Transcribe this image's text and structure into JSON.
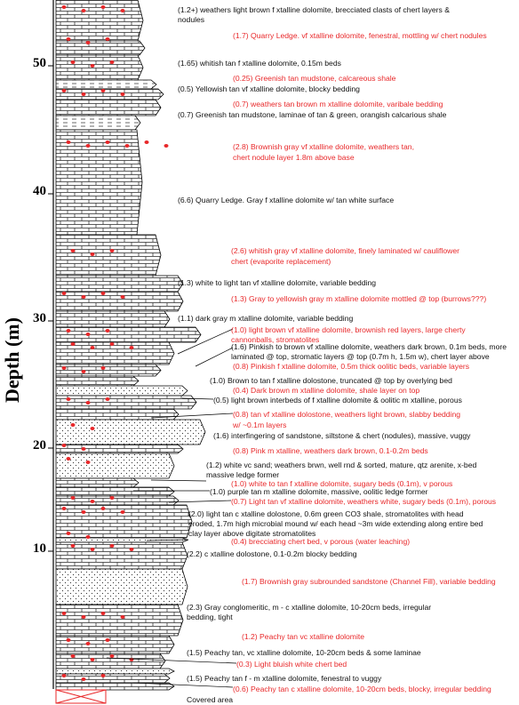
{
  "axis": {
    "label": "Depth (m)",
    "ticks": [
      "10",
      "20",
      "30",
      "40",
      "50"
    ]
  },
  "colors": {
    "red_text": "#e8282a",
    "black_text": "#111111",
    "chert": "#e8282a"
  },
  "units": [
    {
      "text": "(1.2+) weathers light brown f xtalline dolomite, brecciated clasts of chert layers &",
      "color": "black"
    },
    {
      "text": "nodules",
      "color": "black"
    },
    {
      "text": "(1.7) Quarry Ledge. vf xtalline dolomite, fenestral, mottling w/ chert nodules",
      "color": "red"
    },
    {
      "text": "(1.65) whitish tan f xtalline dolomite, 0.15m beds",
      "color": "black"
    },
    {
      "text": "(0.25) Greenish tan mudstone, calcareous shale",
      "color": "red"
    },
    {
      "text": "(0.5) Yellowish tan vf xtalline dolomite, blocky bedding",
      "color": "black"
    },
    {
      "text": "(0.7) weathers tan brown m xtalline dolomite, varibale bedding",
      "color": "red"
    },
    {
      "text": "(0.7) Greenish tan mudstone, laminae of tan & green, orangish calcarious shale",
      "color": "black"
    },
    {
      "text": "(2.8) Brownish gray vf xtalline dolomite, weathers tan,",
      "color": "red"
    },
    {
      "text": "chert nodule layer 1.8m above base",
      "color": "red"
    },
    {
      "text": "(6.6) Quarry Ledge.  Gray f xtalline dolomite w/ tan white surface",
      "color": "black"
    },
    {
      "text": "(2.6) whitish gray vf xtalline dolomite, finely laminated w/ cauliflower",
      "color": "red"
    },
    {
      "text": "chert (evaporite replacement)",
      "color": "red"
    },
    {
      "text": "(1.3) white to light tan vf xtalline dolomite, variable bedding",
      "color": "black"
    },
    {
      "text": "(1.3) Gray to yellowish gray m xtalline dolomite mottled @ top (burrows???)",
      "color": "red"
    },
    {
      "text": "(1.1) dark gray m xtalline dolomite, variable bedding",
      "color": "black"
    },
    {
      "text": "(1.0) light brown vf xtalline dolomite, brownish red layers, large cherty",
      "color": "red"
    },
    {
      "text": "cannonballs, stromatolites",
      "color": "red"
    },
    {
      "text": "(1.6) Pinkish to brown vf xtalline dolomite, weathers dark brown, 0.1m beds, more",
      "color": "black"
    },
    {
      "text": "laminated @ top, stromatic layers @ top (0.7m h, 1.5m w), chert layer above",
      "color": "black"
    },
    {
      "text": "(0.8) Pinkish f xtalline dolomite, 0.5m thick oolitic beds, variable layers",
      "color": "red"
    },
    {
      "text": "(1.0) Brown to tan f xtalline dolostone, truncated @ top by overlying bed",
      "color": "black"
    },
    {
      "text": "(0.4) Dark brown m xtalline dolomite,  shale layer on top",
      "color": "red"
    },
    {
      "text": "(0.5) light brown interbeds of f xtalline dolomite & oolitic m xtalline, porous",
      "color": "black"
    },
    {
      "text": "(0.8) tan vf xtalline dolostone, weathers light brown, slabby bedding",
      "color": "red"
    },
    {
      "text": "w/ ~0.1m layers",
      "color": "red"
    },
    {
      "text": "(1.6) interfingering of sandstone, siltstone & chert (nodules), massive, vuggy",
      "color": "black"
    },
    {
      "text": "(0.8) Pink m xtalline, weathers dark brown, 0.1-0.2m beds",
      "color": "red"
    },
    {
      "text": "(1.2) white vc sand; weathers brwn, well rnd & sorted, mature, qtz arenite, x-bed",
      "color": "black"
    },
    {
      "text": "massive ledge former",
      "color": "black"
    },
    {
      "text": "(1.0) white to tan f xtalline dolomite, sugary beds (0.1m), v porous",
      "color": "red"
    },
    {
      "text": "(1.0) purple tan m xtalline dolomite, massive, oolitic ledge former",
      "color": "black"
    },
    {
      "text": "(0.7) Light tan vf xtalline dolomite, weathers white, sugary beds (0.1m), porous",
      "color": "red"
    },
    {
      "text": "(2.0) light tan c xtalline dolostone, 0.6m green CO3 shale, stromatolites with head",
      "color": "black"
    },
    {
      "text": "eroded, 1.7m high microbial mound w/ each head ~3m wide extending along entire bed",
      "color": "black"
    },
    {
      "text": "clay layer above digitate stromatolites",
      "color": "black"
    },
    {
      "text": "(0.4) brecciating chert bed, v porous (water leaching)",
      "color": "red"
    },
    {
      "text": "(2.2) c xtalline dolostone, 0.1-0.2m blocky bedding",
      "color": "black"
    },
    {
      "text": "(1.7) Brownish gray subrounded sandstone (Channel Fill), variable bedding",
      "color": "red"
    },
    {
      "text": "(2.3) Gray conglomeritic, m - c xtalline dolomite, 10-20cm beds, irregular",
      "color": "black"
    },
    {
      "text": "bedding, tight",
      "color": "black"
    },
    {
      "text": "(1.2) Peachy tan vc xtalline dolomite",
      "color": "red"
    },
    {
      "text": "(1.5) Peachy tan, vc xtalline dolomite, 10-20cm beds & some laminae",
      "color": "black"
    },
    {
      "text": "(0.3) Light bluish white chert bed",
      "color": "red"
    },
    {
      "text": "(1.5) Peachy tan f - m xtalline dolomite, fenestral to vuggy",
      "color": "black"
    },
    {
      "text": "(0.6) Peachy tan c xtalline dolomite, 10-20cm beds, blocky, irregular bedding",
      "color": "red"
    },
    {
      "text": "Covered area",
      "color": "black"
    }
  ]
}
